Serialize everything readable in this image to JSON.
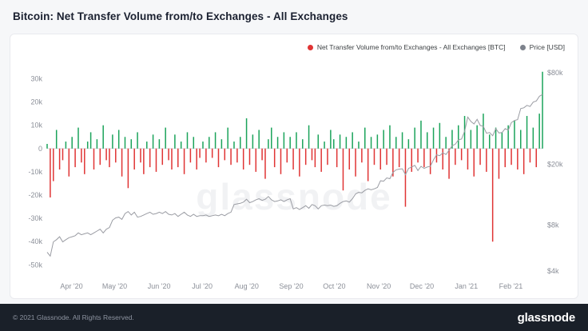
{
  "page": {
    "title": "Bitcoin: Net Transfer Volume from/to Exchanges - All Exchanges",
    "watermark": "glassnode",
    "footer": {
      "copyright": "© 2021 Glassnode. All Rights Reserved.",
      "logo": "glassnode"
    }
  },
  "legend": [
    {
      "label": "Net Transfer Volume from/to Exchanges - All Exchanges [BTC]",
      "color": "#e03434"
    },
    {
      "label": "Price [USD]",
      "color": "#7d828c"
    }
  ],
  "chart_data": {
    "type": "bar",
    "title": "Bitcoin: Net Transfer Volume from/to Exchanges - All Exchanges",
    "x_total_days": 345,
    "x_step_days": 2.17,
    "x_ticks": [
      {
        "day": 17,
        "label": "Apr '20"
      },
      {
        "day": 47,
        "label": "May '20"
      },
      {
        "day": 78,
        "label": "Jun '20"
      },
      {
        "day": 108,
        "label": "Jul '20"
      },
      {
        "day": 139,
        "label": "Aug '20"
      },
      {
        "day": 170,
        "label": "Sep '20"
      },
      {
        "day": 200,
        "label": "Oct '20"
      },
      {
        "day": 231,
        "label": "Nov '20"
      },
      {
        "day": 261,
        "label": "Dec '20"
      },
      {
        "day": 292,
        "label": "Jan '21"
      },
      {
        "day": 323,
        "label": "Feb '21"
      }
    ],
    "left_axis": {
      "unit": "BTC (thousands)",
      "domain": [
        -54,
        36
      ],
      "ticks": [
        {
          "v": 30,
          "label": "30k"
        },
        {
          "v": 20,
          "label": "20k"
        },
        {
          "v": 10,
          "label": "10k"
        },
        {
          "v": 0,
          "label": "0"
        },
        {
          "v": -10,
          "label": "-10k"
        },
        {
          "v": -20,
          "label": "-20k"
        },
        {
          "v": -30,
          "label": "-30k"
        },
        {
          "v": -40,
          "label": "-40k"
        },
        {
          "v": -50,
          "label": "-50k"
        }
      ]
    },
    "right_axis": {
      "unit": "USD (log scale)",
      "domain": [
        3800,
        90000
      ],
      "ticks": [
        {
          "v": 80000,
          "label": "$80k"
        },
        {
          "v": 20000,
          "label": "$20k"
        },
        {
          "v": 8000,
          "label": "$8k"
        },
        {
          "v": 4000,
          "label": "$4k"
        }
      ]
    },
    "series": [
      {
        "name": "Net Transfer Volume from/to Exchanges - All Exchanges [BTC]",
        "type": "bar",
        "color_pos": "#1aa35a",
        "color_neg": "#e03434",
        "values_k": [
          2,
          -21,
          -14,
          8,
          -9,
          -5,
          3,
          -12,
          5,
          -8,
          9,
          -6,
          -11,
          3,
          7,
          -9,
          4,
          -7,
          10,
          -5,
          -8,
          6,
          -6,
          8,
          -12,
          5,
          -17,
          4,
          -9,
          7,
          -6,
          -11,
          3,
          -8,
          6,
          -10,
          4,
          -7,
          9,
          -5,
          -9,
          6,
          -8,
          3,
          -11,
          7,
          -6,
          5,
          -9,
          -4,
          3,
          -6,
          5,
          -4,
          7,
          -8,
          4,
          -5,
          9,
          -7,
          3,
          -6,
          5,
          -9,
          13,
          -7,
          6,
          -10,
          8,
          -5,
          -13,
          4,
          9,
          -8,
          5,
          -11,
          7,
          -6,
          5,
          -9,
          7,
          -12,
          4,
          -7,
          10,
          -5,
          -8,
          6,
          -10,
          3,
          -7,
          8,
          4,
          -8,
          6,
          -18,
          5,
          -9,
          7,
          -12,
          3,
          -6,
          9,
          -14,
          5,
          -7,
          6,
          -9,
          8,
          -7,
          10,
          -12,
          5,
          -8,
          7,
          -25,
          4,
          -10,
          9,
          -6,
          12,
          -8,
          7,
          -11,
          9,
          -6,
          11,
          -9,
          5,
          -13,
          8,
          -7,
          10,
          -5,
          14,
          -9,
          8,
          -12,
          10,
          -7,
          15,
          -10,
          6,
          -40,
          9,
          -13,
          7,
          -8,
          10,
          -7,
          12,
          -9,
          8,
          -11,
          14,
          -6,
          9,
          -8,
          15,
          33
        ]
      },
      {
        "name": "Price [USD]",
        "type": "line",
        "color": "#9a9ca3",
        "values_usd": [
          5300,
          5000,
          6200,
          6400,
          6700,
          6200,
          6400,
          6600,
          6700,
          6800,
          7100,
          6900,
          7000,
          7100,
          6900,
          7100,
          7300,
          7500,
          7100,
          7500,
          7700,
          8600,
          8900,
          9000,
          8700,
          9500,
          9800,
          9300,
          9700,
          9000,
          9100,
          9300,
          9500,
          9700,
          9400,
          9500,
          9700,
          9500,
          9800,
          9400,
          9300,
          9500,
          9100,
          9400,
          9700,
          9300,
          9100,
          9400,
          9100,
          9200,
          9200,
          9300,
          9100,
          9200,
          9300,
          9200,
          9400,
          9200,
          9500,
          9700,
          10900,
          11000,
          11100,
          11300,
          11800,
          11200,
          11400,
          11700,
          11900,
          11600,
          11800,
          12300,
          11700,
          11400,
          11500,
          11700,
          11400,
          11700,
          11900,
          10200,
          10400,
          10100,
          10400,
          10700,
          10300,
          10900,
          10700,
          10200,
          10700,
          10800,
          10700,
          10800,
          10600,
          10700,
          11100,
          11400,
          11500,
          11300,
          11900,
          12800,
          13100,
          13000,
          13500,
          13800,
          13600,
          13800,
          14100,
          15600,
          15500,
          16300,
          16100,
          17700,
          18400,
          18600,
          18700,
          17100,
          18800,
          19200,
          19700,
          18200,
          19400,
          18800,
          19200,
          19400,
          21400,
          23100,
          22800,
          23800,
          23200,
          24700,
          26500,
          27100,
          29000,
          29300,
          33000,
          40800,
          38200,
          36800,
          39500,
          36000,
          35500,
          32000,
          32300,
          30800,
          34300,
          32100,
          32300,
          34300,
          33500,
          37600,
          38800,
          39300,
          46400,
          47000,
          48700,
          47900,
          51200,
          52100,
          55900,
          57500
        ]
      }
    ]
  }
}
